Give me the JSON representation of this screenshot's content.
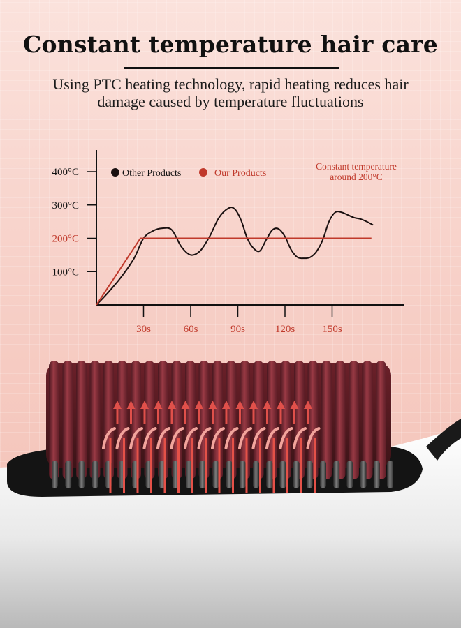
{
  "header": {
    "title": "Constant temperature hair care",
    "subtitle_line1": "Using PTC heating technology, rapid heating reduces hair",
    "subtitle_line2": "damage caused by temperature fluctuations"
  },
  "chart_data": {
    "type": "line",
    "x_ticks": [
      "30s",
      "60s",
      "90s",
      "120s",
      "150s"
    ],
    "y_ticks": [
      "100°C",
      "200°C",
      "300°C",
      "400°C"
    ],
    "xlim": [
      0,
      195
    ],
    "ylim": [
      0,
      420
    ],
    "legend": {
      "placement": "top-left"
    },
    "annotation_line1": "Constant temperature",
    "annotation_line2": "around 200°C",
    "series": [
      {
        "name": "Other Products",
        "color": "#1a1010",
        "x": [
          0,
          8,
          16,
          24,
          30,
          36,
          42,
          48,
          54,
          60,
          66,
          72,
          78,
          84,
          88,
          92,
          96,
          100,
          104,
          108,
          112,
          116,
          120,
          124,
          128,
          132,
          136,
          140,
          144,
          148,
          152,
          156,
          160,
          164,
          168,
          172,
          176
        ],
        "y": [
          0,
          40,
          85,
          140,
          200,
          222,
          230,
          225,
          175,
          150,
          162,
          205,
          262,
          290,
          288,
          255,
          200,
          170,
          162,
          195,
          225,
          228,
          205,
          165,
          143,
          140,
          143,
          160,
          195,
          250,
          278,
          278,
          270,
          262,
          258,
          250,
          240
        ]
      },
      {
        "name": "Our Products",
        "color": "#c0392b",
        "x": [
          0,
          28,
          175
        ],
        "y": [
          0,
          200,
          200
        ]
      }
    ]
  },
  "product": {
    "colors": {
      "comb_red": "#7a2530",
      "arrow_red": "#e0504a",
      "body_white": "#f4f4f4",
      "base_dark": "#151515"
    }
  }
}
